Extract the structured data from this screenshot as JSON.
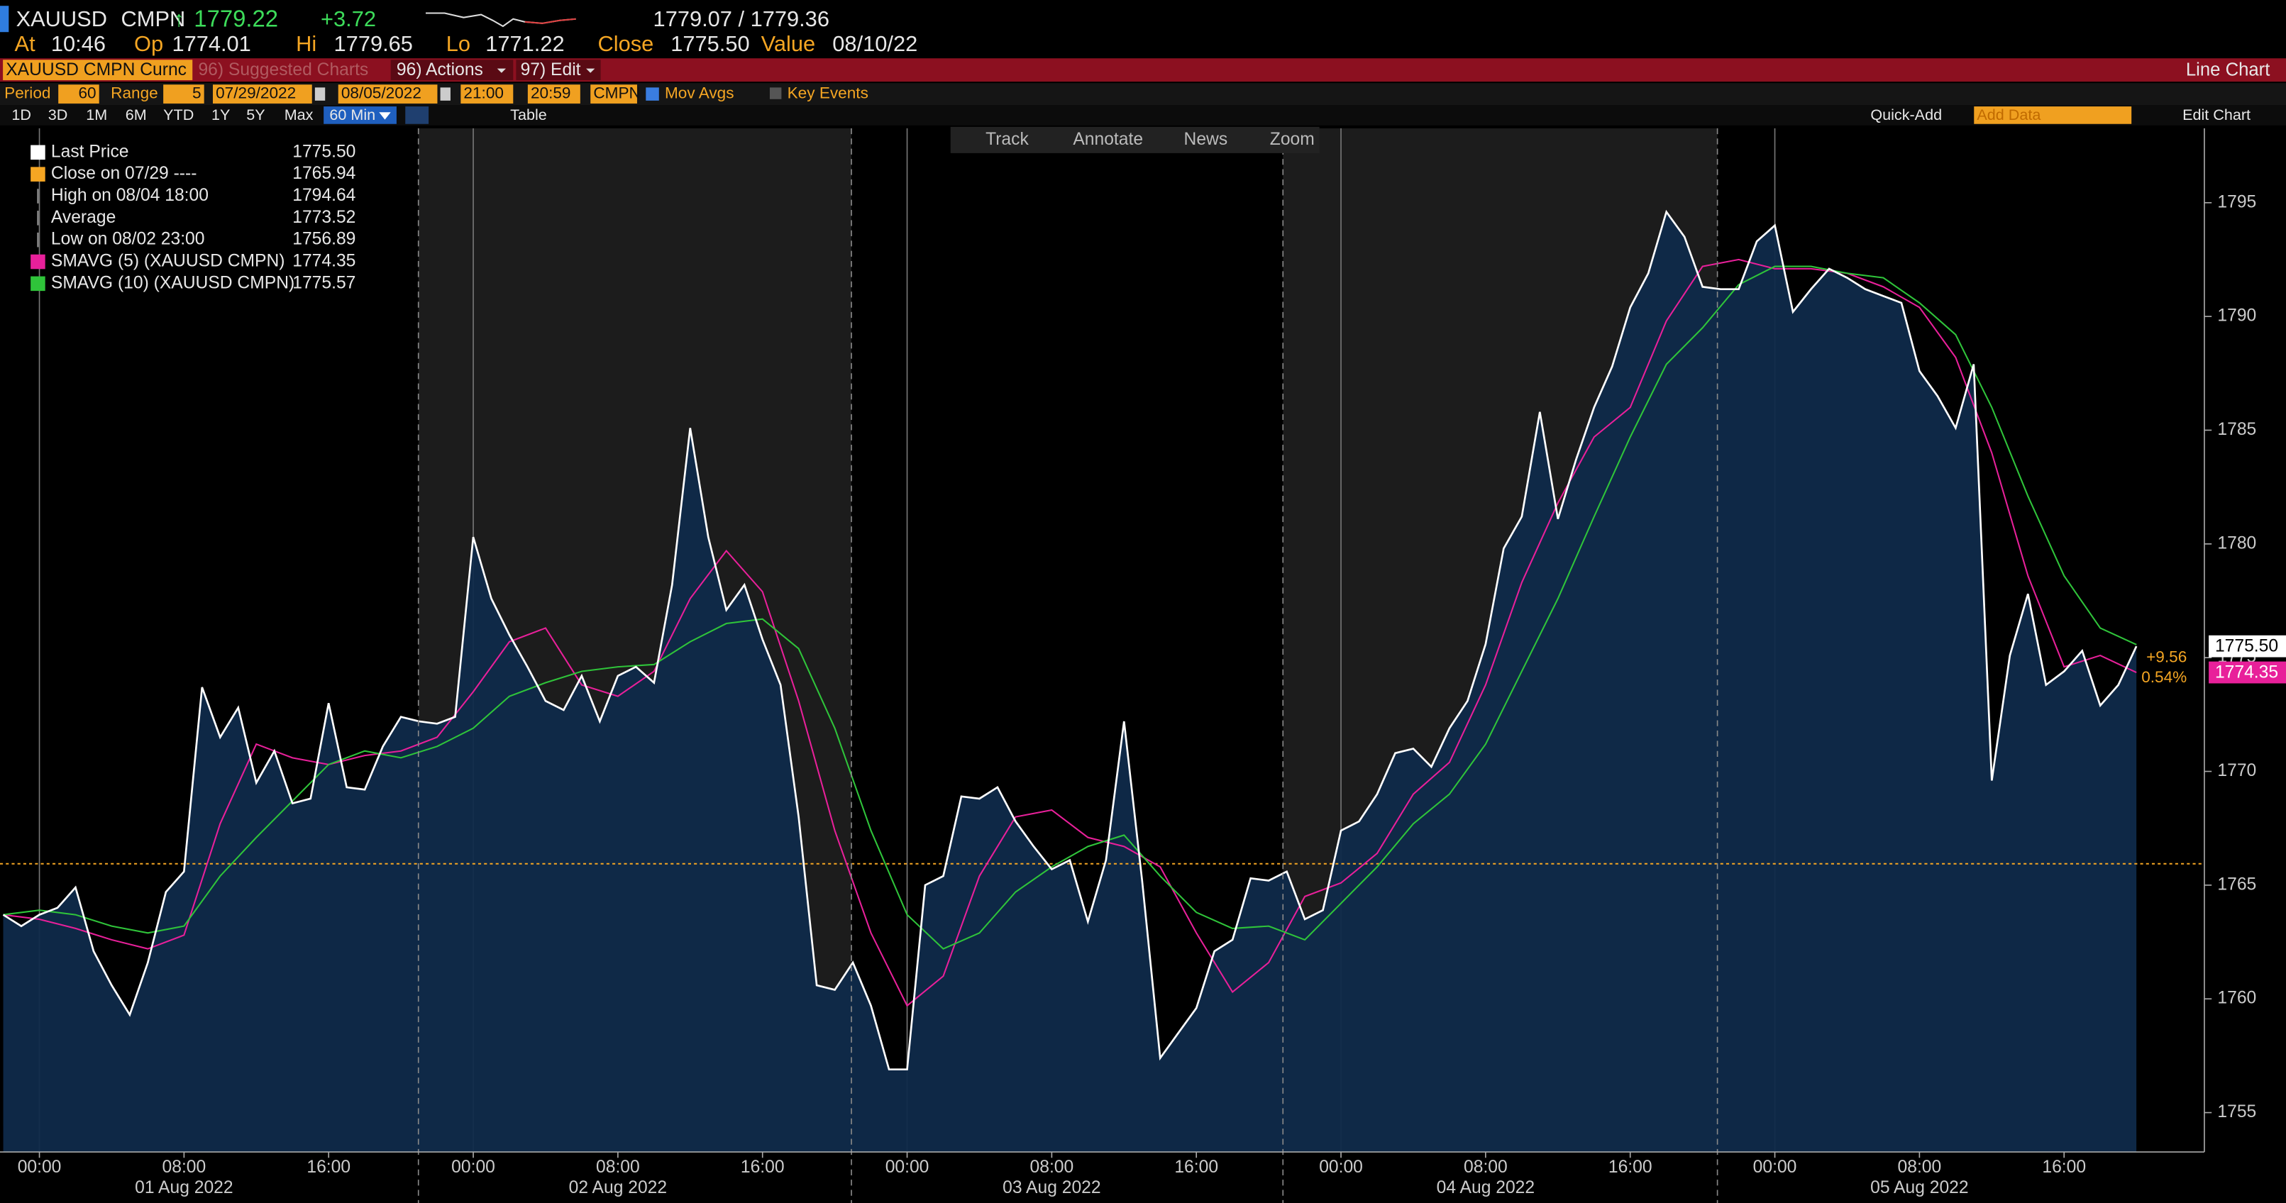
{
  "header": {
    "ticker": "XAUUSD",
    "source": "CMPN",
    "arrow": "↑",
    "last": "1779.22",
    "change": "+3.72",
    "bid_ask": "1779.07 / 1779.36",
    "fields": [
      {
        "label": "At",
        "value": "10:46"
      },
      {
        "label": "Op",
        "value": "1774.01"
      },
      {
        "label": "Hi",
        "value": "1779.65"
      },
      {
        "label": "Lo",
        "value": "1771.22"
      },
      {
        "label": "Close",
        "value": "1775.50"
      },
      {
        "label": "Value",
        "value": "08/10/22"
      }
    ]
  },
  "toolbar": {
    "security": "XAUUSD CMPN Curnc",
    "suggested": "96) Suggested Charts",
    "actions": "96) Actions",
    "edit": "97) Edit",
    "chart_type": "Line Chart"
  },
  "settings": {
    "period_label": "Period",
    "period": "60",
    "range_label": "Range",
    "range": "5",
    "start_date": "07/29/2022",
    "end_date": "08/05/2022",
    "start_time": "21:00",
    "end_time": "20:59",
    "source": "CMPN",
    "mov_avgs": "Mov Avgs",
    "key_events": "Key Events"
  },
  "ranges": [
    "1D",
    "3D",
    "1M",
    "6M",
    "YTD",
    "1Y",
    "5Y",
    "Max"
  ],
  "interval": "60 Min",
  "table": "Table",
  "quick_add": "Quick-Add",
  "add_data": "Add Data",
  "edit_chart": "Edit Chart",
  "chart_tools": [
    "Track",
    "Annotate",
    "News",
    "Zoom"
  ],
  "chart_data": {
    "type": "line",
    "xlim": [
      -2.18,
      119.76
    ],
    "ylim": [
      1753.27,
      1798.27
    ],
    "yticks": [
      1755,
      1760,
      1765,
      1770,
      1775,
      1780,
      1785,
      1790,
      1795
    ],
    "xticks": [
      {
        "value": 0,
        "label": "00:00"
      },
      {
        "value": 8,
        "label": "08:00"
      },
      {
        "value": 16,
        "label": "16:00"
      },
      {
        "value": 24,
        "label": "00:00"
      },
      {
        "value": 32,
        "label": "08:00"
      },
      {
        "value": 40,
        "label": "16:00"
      },
      {
        "value": 48,
        "label": "00:00"
      },
      {
        "value": 56,
        "label": "08:00"
      },
      {
        "value": 64,
        "label": "16:00"
      },
      {
        "value": 72,
        "label": "00:00"
      },
      {
        "value": 80,
        "label": "08:00"
      },
      {
        "value": 88,
        "label": "16:00"
      },
      {
        "value": 96,
        "label": "00:00"
      },
      {
        "value": 104,
        "label": "08:00"
      },
      {
        "value": 112,
        "label": "16:00"
      }
    ],
    "date_labels": [
      {
        "value": 8,
        "label": "01 Aug 2022"
      },
      {
        "value": 32,
        "label": "02 Aug 2022"
      },
      {
        "value": 56,
        "label": "03 Aug 2022"
      },
      {
        "value": 80,
        "label": "04 Aug 2022"
      },
      {
        "value": 104,
        "label": "05 Aug 2022"
      }
    ],
    "series": [
      {
        "name": "Last Price",
        "color": "#ffffff",
        "fill": "#0f2a4a",
        "legend_value": "1775.50",
        "last_label": "1775.50",
        "x": [
          -2,
          -1,
          0,
          1,
          2,
          3,
          4,
          5,
          6,
          7,
          8,
          9,
          10,
          11,
          12,
          13,
          14,
          15,
          16,
          17,
          18,
          19,
          20,
          21,
          22,
          23,
          24,
          25,
          26,
          27,
          28,
          29,
          30,
          31,
          32,
          33,
          34,
          35,
          36,
          37,
          38,
          39,
          40,
          41,
          42,
          43,
          44,
          45,
          46,
          47,
          48,
          49,
          50,
          51,
          52,
          53,
          54,
          55,
          56,
          57,
          58,
          59,
          60,
          61,
          62,
          63,
          64,
          65,
          66,
          67,
          68,
          69,
          70,
          71,
          72,
          73,
          74,
          75,
          76,
          77,
          78,
          79,
          80,
          81,
          82,
          83,
          84,
          85,
          86,
          87,
          88,
          89,
          90,
          91,
          92,
          93,
          94,
          95,
          96,
          97,
          98,
          99,
          100,
          101,
          102,
          103,
          104,
          105,
          106,
          107,
          108,
          109,
          110,
          111,
          112,
          113,
          114,
          115,
          116
        ],
        "values": [
          1763.7,
          1763.2,
          1763.7,
          1764.0,
          1764.9,
          1762.1,
          1760.6,
          1759.3,
          1761.6,
          1764.7,
          1765.6,
          1773.7,
          1771.5,
          1772.8,
          1769.5,
          1770.9,
          1768.6,
          1768.8,
          1773.0,
          1769.3,
          1769.2,
          1771.1,
          1772.4,
          1772.2,
          1772.1,
          1772.4,
          1780.3,
          1777.6,
          1776.0,
          1774.6,
          1773.1,
          1772.7,
          1774.2,
          1772.2,
          1774.2,
          1774.6,
          1773.9,
          1778.2,
          1785.1,
          1780.3,
          1777.1,
          1778.2,
          1775.8,
          1773.8,
          1768.0,
          1760.6,
          1760.4,
          1761.6,
          1759.7,
          1756.9,
          1756.9,
          1765.0,
          1765.4,
          1768.9,
          1768.8,
          1769.3,
          1767.8,
          1766.7,
          1765.7,
          1766.1,
          1763.4,
          1766.1,
          1772.2,
          1765.2,
          1757.4,
          1758.5,
          1759.6,
          1762.1,
          1762.6,
          1765.3,
          1765.2,
          1765.6,
          1763.5,
          1763.9,
          1767.4,
          1767.8,
          1769.0,
          1770.8,
          1771.0,
          1770.2,
          1771.9,
          1773.1,
          1775.6,
          1779.8,
          1781.2,
          1785.8,
          1781.1,
          1783.7,
          1786.0,
          1787.8,
          1790.4,
          1791.9,
          1794.6,
          1793.5,
          1791.3,
          1791.2,
          1791.2,
          1793.3,
          1794.0,
          1790.2,
          1791.2,
          1792.1,
          1791.7,
          1791.2,
          1790.9,
          1790.6,
          1787.6,
          1786.5,
          1785.1,
          1787.9,
          1769.6,
          1775.1,
          1777.8,
          1773.8,
          1774.4,
          1775.3,
          1772.9,
          1773.8,
          1775.5
        ]
      },
      {
        "name": "SMAVG (5) (XAUUSD CMPN)",
        "color": "#e8209a",
        "legend_value": "1774.35",
        "last_label": "1774.35",
        "x": [
          -2,
          0,
          2,
          4,
          6,
          8,
          10,
          12,
          14,
          16,
          18,
          20,
          22,
          24,
          26,
          28,
          30,
          32,
          34,
          36,
          38,
          40,
          42,
          44,
          46,
          48,
          50,
          52,
          54,
          56,
          58,
          60,
          62,
          64,
          66,
          68,
          70,
          72,
          74,
          76,
          78,
          80,
          82,
          84,
          86,
          88,
          90,
          92,
          94,
          96,
          98,
          100,
          102,
          104,
          106,
          108,
          110,
          112,
          114,
          116
        ],
        "values": [
          1763.7,
          1763.5,
          1763.1,
          1762.6,
          1762.2,
          1762.8,
          1767.7,
          1771.2,
          1770.6,
          1770.3,
          1770.7,
          1770.9,
          1771.5,
          1773.5,
          1775.7,
          1776.3,
          1773.8,
          1773.3,
          1774.4,
          1777.6,
          1779.7,
          1777.9,
          1773.1,
          1767.4,
          1762.9,
          1759.7,
          1761.0,
          1765.4,
          1768.0,
          1768.3,
          1767.1,
          1766.7,
          1765.8,
          1762.9,
          1760.3,
          1761.6,
          1764.5,
          1765.1,
          1766.4,
          1769.0,
          1770.4,
          1773.8,
          1778.3,
          1781.8,
          1784.7,
          1786.0,
          1789.8,
          1792.2,
          1792.5,
          1792.1,
          1792.1,
          1791.9,
          1791.3,
          1790.4,
          1788.2,
          1784.0,
          1778.6,
          1774.6,
          1775.1,
          1774.35
        ]
      },
      {
        "name": "SMAVG (10) (XAUUSD CMPN)",
        "color": "#2fc43a",
        "legend_value": "1775.57",
        "x": [
          -2,
          0,
          2,
          4,
          6,
          8,
          10,
          12,
          14,
          16,
          18,
          20,
          22,
          24,
          26,
          28,
          30,
          32,
          34,
          36,
          38,
          40,
          42,
          44,
          46,
          48,
          50,
          52,
          54,
          56,
          58,
          60,
          62,
          64,
          66,
          68,
          70,
          72,
          74,
          76,
          78,
          80,
          82,
          84,
          86,
          88,
          90,
          92,
          94,
          96,
          98,
          100,
          102,
          104,
          106,
          108,
          110,
          112,
          114,
          116
        ],
        "values": [
          1763.7,
          1763.9,
          1763.7,
          1763.2,
          1762.9,
          1763.2,
          1765.4,
          1767.1,
          1768.7,
          1770.3,
          1770.9,
          1770.6,
          1771.1,
          1771.9,
          1773.3,
          1773.9,
          1774.4,
          1774.6,
          1774.7,
          1775.7,
          1776.5,
          1776.7,
          1775.4,
          1771.9,
          1767.4,
          1763.7,
          1762.2,
          1762.9,
          1764.7,
          1765.8,
          1766.7,
          1767.2,
          1765.4,
          1763.8,
          1763.1,
          1763.2,
          1762.6,
          1764.2,
          1765.8,
          1767.7,
          1769.0,
          1771.2,
          1774.4,
          1777.6,
          1781.2,
          1784.7,
          1787.9,
          1789.5,
          1791.4,
          1792.2,
          1792.2,
          1791.9,
          1791.7,
          1790.6,
          1789.2,
          1786.0,
          1782.1,
          1778.6,
          1776.3,
          1775.57
        ]
      }
    ],
    "stats": [
      {
        "label": "Close on 07/29 ----",
        "value": 1765.94,
        "color": "#f5a623"
      },
      {
        "label": "High on 08/04 18:00",
        "value": 1794.64
      },
      {
        "label": "Average",
        "value": 1773.52
      },
      {
        "label": "Low on 08/02 23:00",
        "value": 1756.89
      }
    ],
    "change_labels": [
      "+9.56",
      "0.54%"
    ],
    "grid": true
  }
}
